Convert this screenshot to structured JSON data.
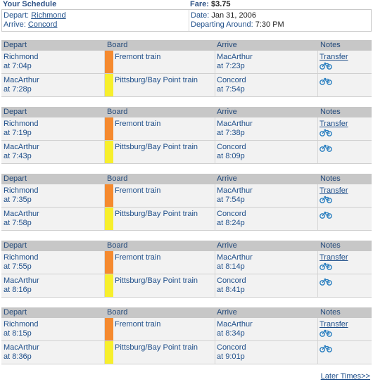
{
  "header": {
    "title": "Your Schedule",
    "fare_label": "Fare:",
    "fare_value": "$3.75"
  },
  "summary": {
    "depart_label": "Depart:",
    "depart_station": "Richmond",
    "arrive_label": "Arrive:",
    "arrive_station": "Concord",
    "date_label": "Date:",
    "date_value": "Jan 31, 2006",
    "departing_label": "Departing Around:",
    "departing_value": "7:30 PM"
  },
  "columns": {
    "depart": "Depart",
    "board": "Board",
    "arrive": "Arrive",
    "notes": "Notes"
  },
  "colors": {
    "fremont": "#f58a2f",
    "pittsburg": "#f7ef2c"
  },
  "trips": [
    {
      "legs": [
        {
          "from": "Richmond",
          "dep_time": "at 7:04p",
          "line": "Fremont train",
          "color_key": "fremont",
          "to": "MacArthur",
          "arr_time": "at 7:23p",
          "note_link": "Transfer",
          "bike": "bike-icon"
        },
        {
          "from": "MacArthur",
          "dep_time": "at 7:28p",
          "line": "Pittsburg/Bay Point train",
          "color_key": "pittsburg",
          "to": "Concord",
          "arr_time": "at 7:54p",
          "note_link": "",
          "bike": "bike-icon"
        }
      ]
    },
    {
      "legs": [
        {
          "from": "Richmond",
          "dep_time": "at 7:19p",
          "line": "Fremont train",
          "color_key": "fremont",
          "to": "MacArthur",
          "arr_time": "at 7:38p",
          "note_link": "Transfer",
          "bike": "bike-icon"
        },
        {
          "from": "MacArthur",
          "dep_time": "at 7:43p",
          "line": "Pittsburg/Bay Point train",
          "color_key": "pittsburg",
          "to": "Concord",
          "arr_time": "at 8:09p",
          "note_link": "",
          "bike": "bike-icon"
        }
      ]
    },
    {
      "legs": [
        {
          "from": "Richmond",
          "dep_time": "at 7:35p",
          "line": "Fremont train",
          "color_key": "fremont",
          "to": "MacArthur",
          "arr_time": "at 7:54p",
          "note_link": "Transfer",
          "bike": "bike-icon"
        },
        {
          "from": "MacArthur",
          "dep_time": "at 7:58p",
          "line": "Pittsburg/Bay Point train",
          "color_key": "pittsburg",
          "to": "Concord",
          "arr_time": "at 8:24p",
          "note_link": "",
          "bike": "bike-icon"
        }
      ]
    },
    {
      "legs": [
        {
          "from": "Richmond",
          "dep_time": "at 7:55p",
          "line": "Fremont train",
          "color_key": "fremont",
          "to": "MacArthur",
          "arr_time": "at 8:14p",
          "note_link": "Transfer",
          "bike": "bike-icon"
        },
        {
          "from": "MacArthur",
          "dep_time": "at 8:16p",
          "line": "Pittsburg/Bay Point train",
          "color_key": "pittsburg",
          "to": "Concord",
          "arr_time": "at 8:41p",
          "note_link": "",
          "bike": "bike-icon"
        }
      ]
    },
    {
      "legs": [
        {
          "from": "Richmond",
          "dep_time": "at 8:15p",
          "line": "Fremont train",
          "color_key": "fremont",
          "to": "MacArthur",
          "arr_time": "at 8:34p",
          "note_link": "Transfer",
          "bike": "bike-icon"
        },
        {
          "from": "MacArthur",
          "dep_time": "at 8:36p",
          "line": "Pittsburg/Bay Point train",
          "color_key": "pittsburg",
          "to": "Concord",
          "arr_time": "at 9:01p",
          "note_link": "",
          "bike": "bike-icon"
        }
      ]
    }
  ],
  "footer": {
    "later_link": "Later Times>>"
  }
}
